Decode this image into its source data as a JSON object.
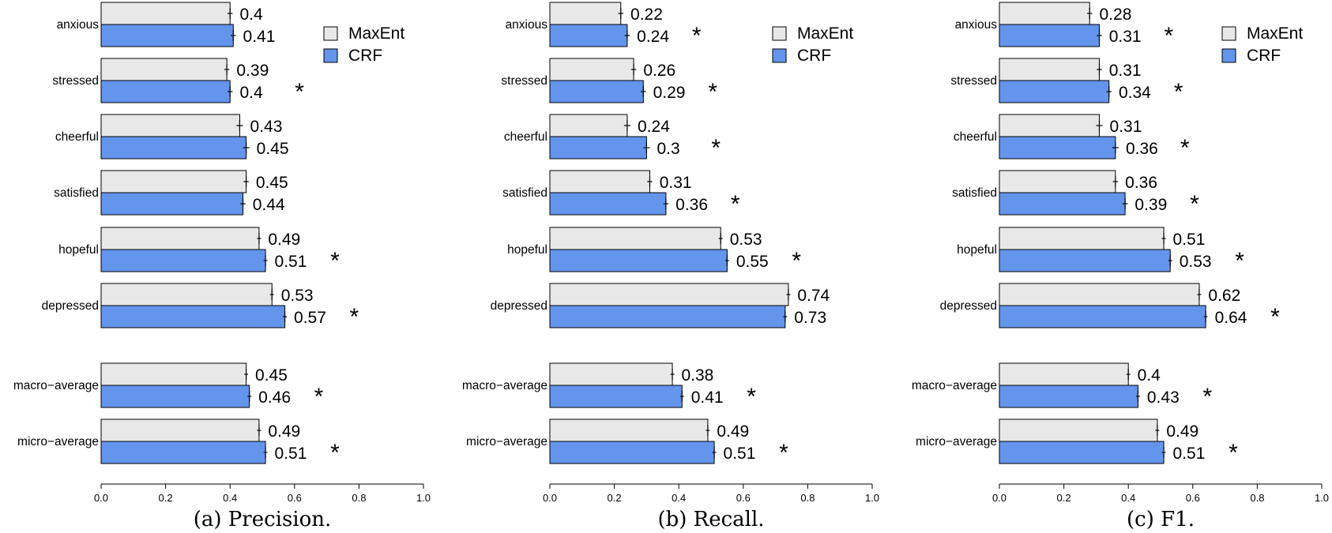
{
  "colors": {
    "maxent": "#e8e8e8",
    "crf": "#6495ed",
    "stroke": "#000000"
  },
  "legend": {
    "entries": [
      "MaxEnt",
      "CRF"
    ],
    "position": "top-right"
  },
  "chart_data": [
    {
      "type": "bar",
      "orientation": "horizontal",
      "title": "(a) Precision.",
      "caption": "(a) Precision.",
      "categories": [
        "anxious",
        "stressed",
        "cheerful",
        "satisfied",
        "hopeful",
        "depressed",
        "macro−average",
        "micro−average"
      ],
      "series": [
        {
          "name": "MaxEnt",
          "values": [
            0.4,
            0.39,
            0.43,
            0.45,
            0.49,
            0.53,
            0.45,
            0.49
          ]
        },
        {
          "name": "CRF",
          "values": [
            0.41,
            0.4,
            0.45,
            0.44,
            0.51,
            0.57,
            0.46,
            0.51
          ]
        }
      ],
      "significant": [
        false,
        true,
        false,
        false,
        true,
        true,
        true,
        true
      ],
      "significance_marker": "*",
      "xlim": [
        0,
        1
      ],
      "xticks": [
        "0.0",
        "0.2",
        "0.4",
        "0.6",
        "0.8",
        "1.0"
      ]
    },
    {
      "type": "bar",
      "orientation": "horizontal",
      "title": "(b) Recall.",
      "caption": "(b) Recall.",
      "categories": [
        "anxious",
        "stressed",
        "cheerful",
        "satisfied",
        "hopeful",
        "depressed",
        "macro−average",
        "micro−average"
      ],
      "series": [
        {
          "name": "MaxEnt",
          "values": [
            0.22,
            0.26,
            0.24,
            0.31,
            0.53,
            0.74,
            0.38,
            0.49
          ]
        },
        {
          "name": "CRF",
          "values": [
            0.24,
            0.29,
            0.3,
            0.36,
            0.55,
            0.73,
            0.41,
            0.51
          ]
        }
      ],
      "significant": [
        true,
        true,
        true,
        true,
        true,
        false,
        true,
        true
      ],
      "significance_marker": "*",
      "xlim": [
        0,
        1
      ],
      "xticks": [
        "0.0",
        "0.2",
        "0.4",
        "0.6",
        "0.8",
        "1.0"
      ]
    },
    {
      "type": "bar",
      "orientation": "horizontal",
      "title": "(c) F1.",
      "caption": "(c) F1.",
      "categories": [
        "anxious",
        "stressed",
        "cheerful",
        "satisfied",
        "hopeful",
        "depressed",
        "macro−average",
        "micro−average"
      ],
      "series": [
        {
          "name": "MaxEnt",
          "values": [
            0.28,
            0.31,
            0.31,
            0.36,
            0.51,
            0.62,
            0.4,
            0.49
          ]
        },
        {
          "name": "CRF",
          "values": [
            0.31,
            0.34,
            0.36,
            0.39,
            0.53,
            0.64,
            0.43,
            0.51
          ]
        }
      ],
      "significant": [
        true,
        true,
        true,
        true,
        true,
        true,
        true,
        true
      ],
      "significance_marker": "*",
      "xlim": [
        0,
        1
      ],
      "xticks": [
        "0.0",
        "0.2",
        "0.4",
        "0.6",
        "0.8",
        "1.0"
      ]
    }
  ]
}
